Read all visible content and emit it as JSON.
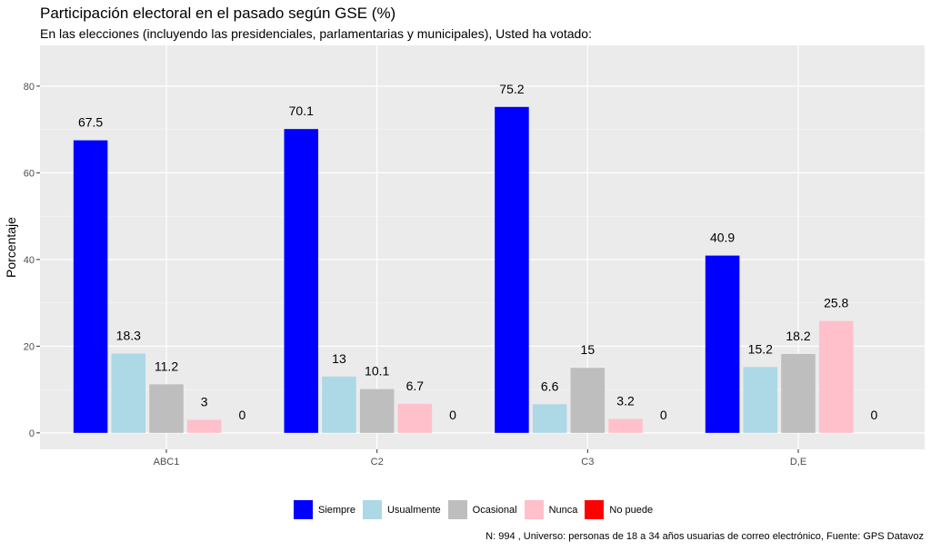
{
  "title": "Participación electoral en el pasado según GSE (%)",
  "subtitle": "En las elecciones (incluyendo las presidenciales, parlamentarias y municipales), Usted ha votado:",
  "caption": "N: 994 , Universo: personas de 18 a 34 años usuarias de correo electrónico, Fuente: GPS Datavoz",
  "chart_data": {
    "type": "bar",
    "categories": [
      "ABC1",
      "C2",
      "C3",
      "D,E"
    ],
    "xlabel": "",
    "ylabel": "Porcentaje",
    "ylim": [
      -3.8,
      89.4
    ],
    "yticks": [
      0,
      20,
      40,
      60,
      80
    ],
    "grid": true,
    "legend_position": "bottom",
    "series": [
      {
        "name": "Siempre",
        "color": "#0000FF",
        "values": [
          67.5,
          70.1,
          75.2,
          40.9
        ]
      },
      {
        "name": "Usualmente",
        "color": "#ADD8E6",
        "values": [
          18.3,
          13,
          6.6,
          15.2
        ]
      },
      {
        "name": "Ocasional",
        "color": "#BEBEBE",
        "values": [
          11.2,
          10.1,
          15,
          18.2
        ]
      },
      {
        "name": "Nunca",
        "color": "#FFC0CB",
        "values": [
          3,
          6.7,
          3.2,
          25.8
        ]
      },
      {
        "name": "No puede",
        "color": "#FF0000",
        "values": [
          0,
          0,
          0,
          0
        ]
      }
    ]
  }
}
